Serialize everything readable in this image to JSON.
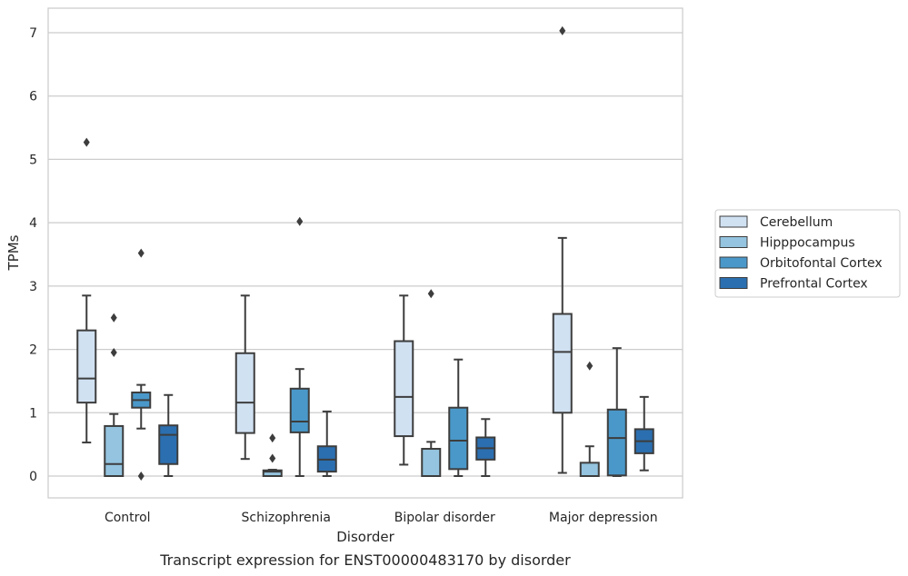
{
  "chart_data": {
    "type": "box",
    "caption": "Transcript expression for ENST00000483170 by disorder",
    "xlabel": "Disorder",
    "ylabel": "TPMs",
    "ylim": [
      -0.33,
      7.4
    ],
    "yticks": [
      0,
      1,
      2,
      3,
      4,
      5,
      6,
      7
    ],
    "grid": "horizontal",
    "legend_position": "right",
    "categories": [
      "Control",
      "Schizophrenia",
      "Bipolar disorder",
      "Major depression"
    ],
    "series": [
      {
        "name": "Cerebellum",
        "color": "#d0e1f2",
        "boxes": [
          {
            "whislo": 0.53,
            "q1": 1.16,
            "med": 1.54,
            "q3": 2.3,
            "whishi": 2.85,
            "fliers": [
              5.27
            ]
          },
          {
            "whislo": 0.27,
            "q1": 0.68,
            "med": 1.16,
            "q3": 1.94,
            "whishi": 2.85,
            "fliers": []
          },
          {
            "whislo": 0.18,
            "q1": 0.63,
            "med": 1.25,
            "q3": 2.13,
            "whishi": 2.85,
            "fliers": []
          },
          {
            "whislo": 0.05,
            "q1": 1.0,
            "med": 1.96,
            "q3": 2.56,
            "whishi": 3.76,
            "fliers": [
              7.03
            ]
          }
        ]
      },
      {
        "name": "Hipppocampus",
        "color": "#94c4df",
        "boxes": [
          {
            "whislo": 0.0,
            "q1": 0.0,
            "med": 0.19,
            "q3": 0.79,
            "whishi": 0.98,
            "fliers": [
              2.5,
              1.95
            ]
          },
          {
            "whislo": 0.0,
            "q1": 0.0,
            "med": 0.07,
            "q3": 0.09,
            "whishi": 0.1,
            "fliers": [
              0.6,
              0.28
            ]
          },
          {
            "whislo": 0.0,
            "q1": 0.0,
            "med": 0.0,
            "q3": 0.43,
            "whishi": 0.54,
            "fliers": [
              2.88
            ]
          },
          {
            "whislo": 0.0,
            "q1": 0.0,
            "med": 0.0,
            "q3": 0.21,
            "whishi": 0.47,
            "fliers": [
              1.74
            ]
          }
        ]
      },
      {
        "name": "Orbitofontal Cortex",
        "color": "#4a98c9",
        "boxes": [
          {
            "whislo": 0.75,
            "q1": 1.08,
            "med": 1.2,
            "q3": 1.32,
            "whishi": 1.44,
            "fliers": [
              3.52,
              0.0
            ]
          },
          {
            "whislo": 0.0,
            "q1": 0.69,
            "med": 0.86,
            "q3": 1.38,
            "whishi": 1.69,
            "fliers": [
              4.02
            ]
          },
          {
            "whislo": 0.0,
            "q1": 0.11,
            "med": 0.56,
            "q3": 1.08,
            "whishi": 1.84,
            "fliers": []
          },
          {
            "whislo": 0.0,
            "q1": 0.01,
            "med": 0.6,
            "q3": 1.05,
            "whishi": 2.02,
            "fliers": []
          }
        ]
      },
      {
        "name": "Prefrontal Cortex",
        "color": "#2b6fb0",
        "boxes": [
          {
            "whislo": 0.0,
            "q1": 0.19,
            "med": 0.65,
            "q3": 0.8,
            "whishi": 1.28,
            "fliers": []
          },
          {
            "whislo": 0.0,
            "q1": 0.07,
            "med": 0.26,
            "q3": 0.47,
            "whishi": 1.02,
            "fliers": []
          },
          {
            "whislo": 0.0,
            "q1": 0.26,
            "med": 0.44,
            "q3": 0.61,
            "whishi": 0.9,
            "fliers": []
          },
          {
            "whislo": 0.09,
            "q1": 0.36,
            "med": 0.55,
            "q3": 0.74,
            "whishi": 1.25,
            "fliers": []
          }
        ]
      }
    ]
  }
}
